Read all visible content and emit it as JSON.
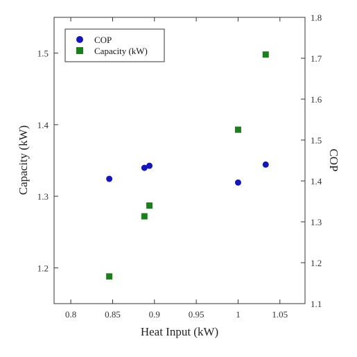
{
  "chart_data": {
    "type": "scatter",
    "xlabel": "Heat Input (kW)",
    "ylabel_left": "Capacity (kW)",
    "ylabel_right": "COP",
    "xlim": [
      0.78,
      1.08
    ],
    "ylim_left": [
      1.15,
      1.55
    ],
    "ylim_right": [
      1.1,
      1.8
    ],
    "x_ticks": [
      0.8,
      0.85,
      0.9,
      0.95,
      1.0,
      1.05
    ],
    "x_tick_labels": [
      "0.8",
      "0.85",
      "0.9",
      "0.95",
      "1",
      "1.05"
    ],
    "y_left_ticks": [
      1.2,
      1.3,
      1.4,
      1.5
    ],
    "y_left_tick_labels": [
      "1.2",
      "1.3",
      "1.4",
      "1.5"
    ],
    "y_right_ticks": [
      1.1,
      1.2,
      1.3,
      1.4,
      1.5,
      1.6,
      1.7,
      1.8
    ],
    "y_right_tick_labels": [
      "1.1",
      "1.2",
      "1.3",
      "1.4",
      "1.5",
      "1.6",
      "1.7",
      "1.8"
    ],
    "grid": false,
    "legend_position": "top-left",
    "series": [
      {
        "name": "COP",
        "axis": "right",
        "marker": "circle",
        "color": "#1515b8",
        "x": [
          0.846,
          0.888,
          0.894,
          1.0,
          1.033
        ],
        "y": [
          1.405,
          1.432,
          1.437,
          1.396,
          1.44
        ]
      },
      {
        "name": "Capacity (kW)",
        "axis": "left",
        "marker": "square",
        "color": "#1e7d1e",
        "x": [
          0.846,
          0.888,
          0.894,
          1.0,
          1.033
        ],
        "y": [
          1.188,
          1.272,
          1.287,
          1.393,
          1.498
        ]
      }
    ]
  }
}
